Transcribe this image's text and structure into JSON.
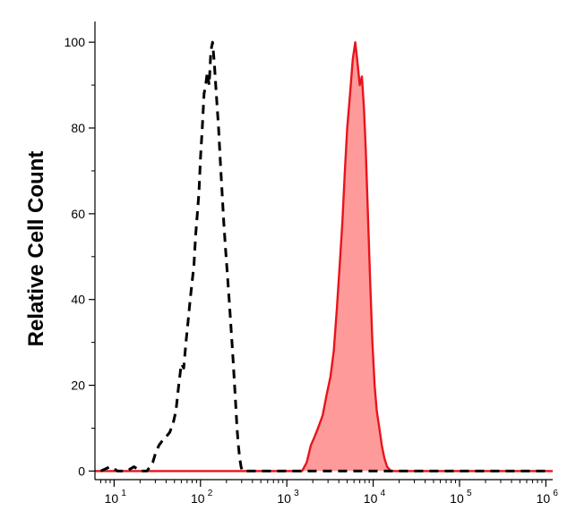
{
  "chart_data": {
    "type": "area",
    "xscale": "log",
    "xlim": [
      6,
      1200000
    ],
    "ylim": [
      -2,
      104
    ],
    "ylabel": "Relative Cell Count",
    "xlabel": "",
    "yticks": [
      {
        "label": "0",
        "value": 0
      },
      {
        "label": "20",
        "value": 20
      },
      {
        "label": "40",
        "value": 40
      },
      {
        "label": "60",
        "value": 60
      },
      {
        "label": "80",
        "value": 80
      },
      {
        "label": "100",
        "value": 100
      }
    ],
    "xticks": [
      {
        "base": "10",
        "exp": "1",
        "value": 10
      },
      {
        "base": "10",
        "exp": "2",
        "value": 100
      },
      {
        "base": "10",
        "exp": "3",
        "value": 1000
      },
      {
        "base": "10",
        "exp": "4",
        "value": 10000
      },
      {
        "base": "10",
        "exp": "5",
        "value": 100000
      },
      {
        "base": "10",
        "exp": "6",
        "value": 1000000
      }
    ],
    "series": [
      {
        "style": "dashed",
        "color": "#000000",
        "fill": "none",
        "x": [
          7,
          9,
          11,
          14,
          17,
          20,
          22,
          24,
          26,
          28,
          30,
          33,
          36,
          40,
          44,
          48,
          52,
          56,
          60,
          64,
          68,
          72,
          76,
          80,
          84,
          88,
          92,
          96,
          100,
          105,
          110,
          115,
          120,
          126,
          132,
          138,
          145,
          150,
          156,
          162,
          170,
          178,
          186,
          195,
          205,
          215,
          225,
          235,
          245,
          255,
          265,
          275,
          285,
          295,
          305,
          320,
          350,
          400,
          1000,
          10000,
          100000,
          1000000
        ],
        "y": [
          0,
          1,
          0,
          0,
          1,
          0,
          0,
          0,
          1,
          2,
          4,
          6,
          7,
          8,
          9,
          11,
          14,
          20,
          25,
          24,
          30,
          35,
          40,
          44,
          48,
          55,
          60,
          65,
          73,
          80,
          88,
          90,
          93,
          90,
          98,
          100,
          95,
          90,
          85,
          80,
          72,
          65,
          58,
          52,
          46,
          40,
          34,
          28,
          22,
          16,
          10,
          6,
          3,
          1,
          0,
          0,
          0,
          0,
          0,
          0,
          0,
          0
        ]
      },
      {
        "style": "solid",
        "color": "#e8141c",
        "fill": "#ff9a9a",
        "x": [
          6,
          1000,
          1500,
          1700,
          1900,
          2100,
          2300,
          2600,
          2900,
          3200,
          3500,
          3800,
          4100,
          4400,
          4700,
          5000,
          5400,
          5800,
          6200,
          6600,
          7000,
          7400,
          7800,
          8200,
          8700,
          9200,
          9800,
          10400,
          11000,
          11800,
          12600,
          13500,
          14500,
          16000,
          20000,
          100000,
          1000000,
          1200000
        ],
        "y": [
          0,
          0,
          0,
          2,
          6,
          8,
          10,
          13,
          18,
          22,
          28,
          38,
          48,
          58,
          70,
          80,
          88,
          96,
          100,
          95,
          90,
          92,
          85,
          75,
          60,
          45,
          30,
          20,
          14,
          10,
          6,
          3,
          1,
          0,
          0,
          0,
          0,
          0
        ]
      }
    ]
  }
}
